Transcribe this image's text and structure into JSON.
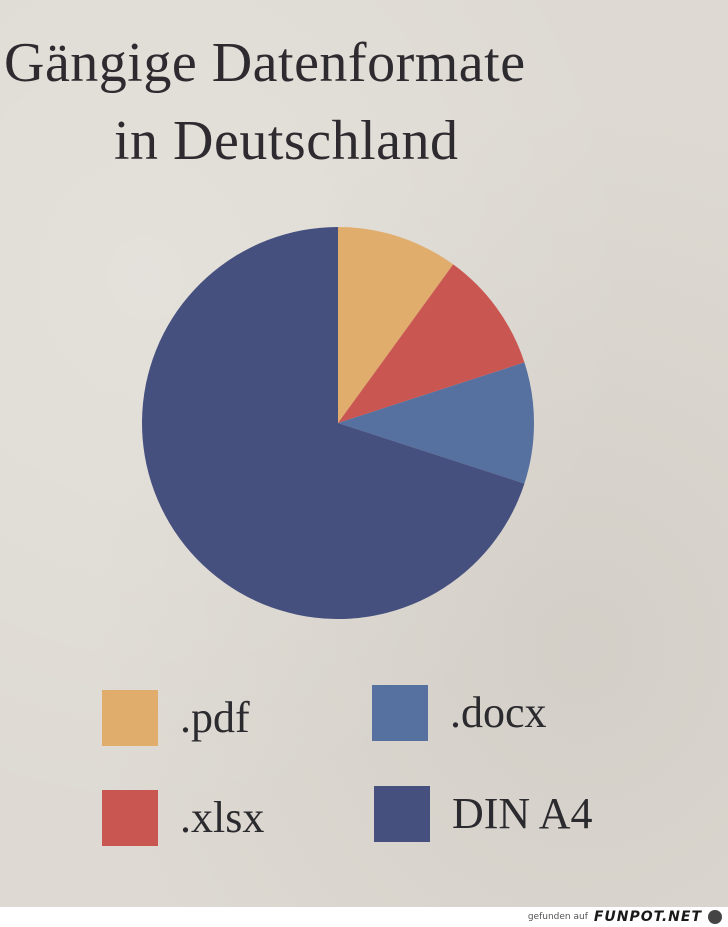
{
  "title": {
    "line1": "Gängige Datenformate",
    "line2": "in Deutschland"
  },
  "chart_data": {
    "type": "pie",
    "title": "Gängige Datenformate in Deutschland",
    "slices": [
      {
        "label": ".pdf",
        "value": 10,
        "color": "#e0ad6c"
      },
      {
        "label": ".xlsx",
        "value": 10,
        "color": "#c95651"
      },
      {
        "label": ".docx",
        "value": 10,
        "color": "#56709f"
      },
      {
        "label": "DIN A4",
        "value": 70,
        "color": "#46507f"
      }
    ],
    "start": "12 o'clock",
    "direction": "clockwise",
    "legend": "bottom, 2 columns"
  },
  "legend": {
    "items": [
      {
        "label": ".pdf",
        "color": "#e0ad6c"
      },
      {
        "label": ".docx",
        "color": "#56709f"
      },
      {
        "label": ".xlsx",
        "color": "#c95651"
      },
      {
        "label": "DIN A4",
        "color": "#46507f"
      }
    ]
  },
  "footer": {
    "text": "gefunden auf",
    "brand": "FUNPOT.NET"
  }
}
